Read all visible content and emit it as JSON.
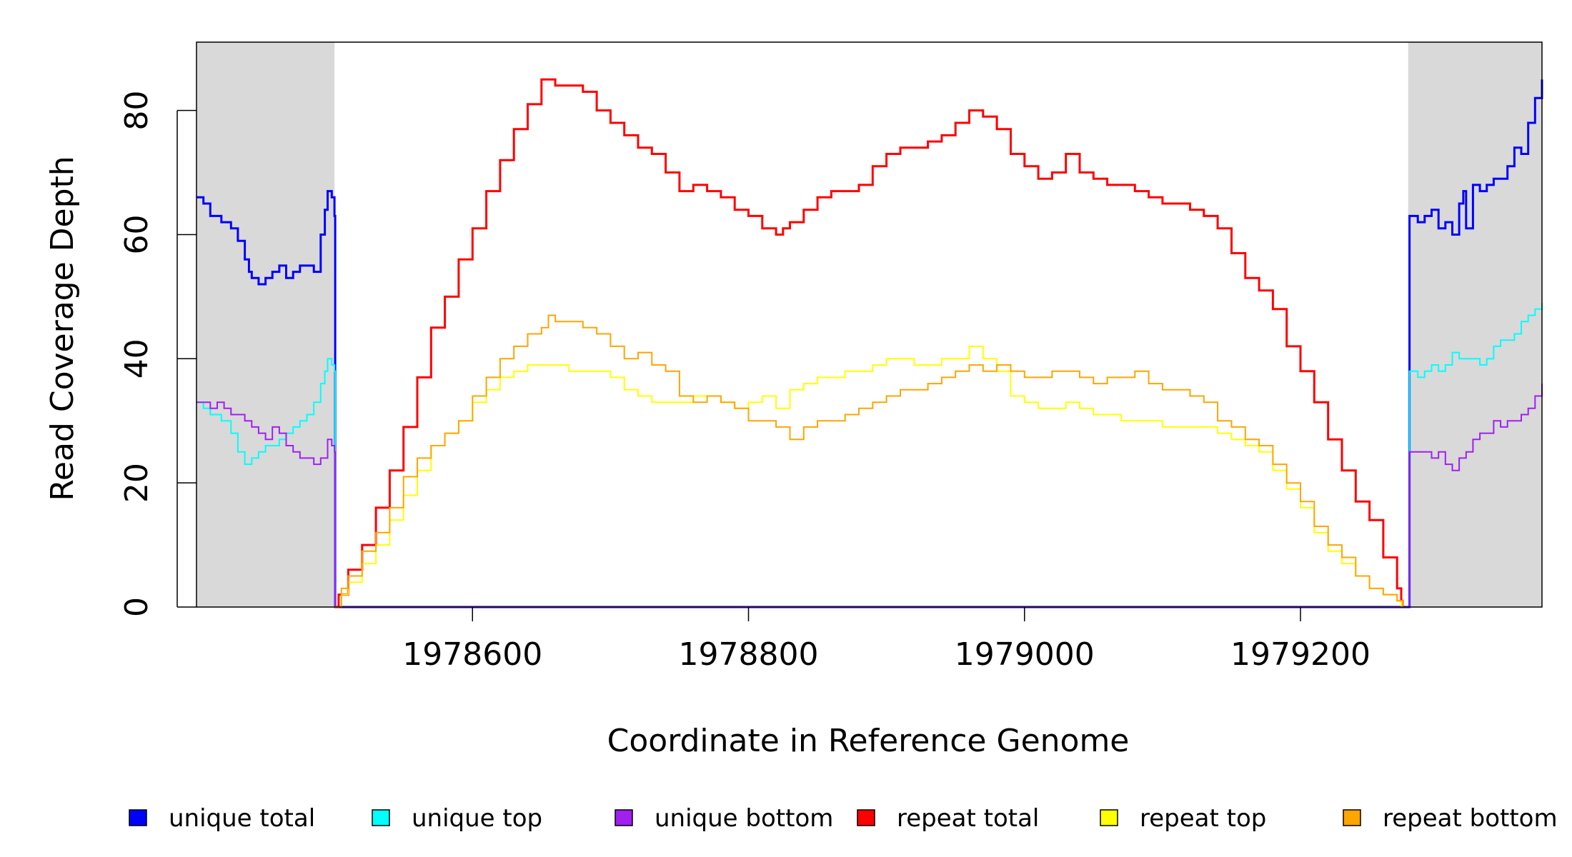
{
  "chart_data": {
    "type": "line",
    "title": "",
    "xlabel": "Coordinate in Reference Genome",
    "ylabel": "Read Coverage Depth",
    "xlim": [
      1978400,
      1979375
    ],
    "ylim": [
      0,
      91
    ],
    "xticks": [
      1978600,
      1978800,
      1979000,
      1979200
    ],
    "yticks": [
      0,
      20,
      40,
      60,
      80
    ],
    "shaded_regions": [
      {
        "from": 1978400,
        "to": 1978500,
        "color": "#d9d9d9"
      },
      {
        "from": 1979278,
        "to": 1979375,
        "color": "#d9d9d9"
      }
    ],
    "series": [
      {
        "name": "unique total",
        "color": "#0000ff",
        "width": 3,
        "x": [
          1978400,
          1978405,
          1978410,
          1978418,
          1978425,
          1978430,
          1978435,
          1978438,
          1978440,
          1978445,
          1978450,
          1978455,
          1978460,
          1978465,
          1978470,
          1978475,
          1978480,
          1978485,
          1978490,
          1978493,
          1978495,
          1978498,
          1978500,
          1978500.5,
          1979278,
          1979279,
          1979285,
          1979290,
          1979295,
          1979300,
          1979305,
          1979310,
          1979315,
          1979318,
          1979320,
          1979325,
          1979330,
          1979335,
          1979340,
          1979345,
          1979350,
          1979355,
          1979360,
          1979365,
          1979370,
          1979375
        ],
        "y": [
          66,
          65,
          63,
          62,
          61,
          59,
          56,
          54,
          53,
          52,
          53,
          54,
          55,
          53,
          54,
          55,
          55,
          54,
          60,
          64,
          67,
          66,
          63,
          0,
          0,
          63,
          62,
          63,
          64,
          61,
          62,
          60,
          65,
          67,
          61,
          68,
          67,
          68,
          69,
          69,
          71,
          74,
          73,
          78,
          82,
          85
        ]
      },
      {
        "name": "unique top",
        "color": "#00ffff",
        "width": 2,
        "x": [
          1978400,
          1978405,
          1978410,
          1978418,
          1978425,
          1978430,
          1978435,
          1978440,
          1978445,
          1978450,
          1978455,
          1978460,
          1978465,
          1978470,
          1978475,
          1978480,
          1978485,
          1978490,
          1978493,
          1978495,
          1978498,
          1978500,
          1978500.5,
          1979278,
          1979279,
          1979285,
          1979290,
          1979295,
          1979300,
          1979305,
          1979310,
          1979315,
          1979320,
          1979325,
          1979330,
          1979335,
          1979340,
          1979345,
          1979350,
          1979355,
          1979360,
          1979365,
          1979370,
          1979375
        ],
        "y": [
          33,
          32,
          31,
          30,
          28,
          25,
          23,
          24,
          25,
          26,
          26,
          27,
          28,
          29,
          30,
          31,
          33,
          36,
          38,
          40,
          39,
          38,
          0,
          0,
          38,
          37,
          38,
          39,
          38,
          39,
          41,
          40,
          40,
          40,
          39,
          40,
          42,
          43,
          43,
          44,
          46,
          47,
          48,
          49
        ]
      },
      {
        "name": "unique bottom",
        "color": "#a020f0",
        "width": 2,
        "x": [
          1978400,
          1978405,
          1978410,
          1978415,
          1978420,
          1978425,
          1978430,
          1978435,
          1978440,
          1978445,
          1978450,
          1978455,
          1978460,
          1978465,
          1978470,
          1978475,
          1978480,
          1978485,
          1978490,
          1978495,
          1978498,
          1978500,
          1978500.5,
          1979278,
          1979279,
          1979285,
          1979290,
          1979295,
          1979300,
          1979305,
          1979310,
          1979315,
          1979320,
          1979325,
          1979330,
          1979335,
          1979340,
          1979345,
          1979350,
          1979355,
          1979360,
          1979365,
          1979370,
          1979375
        ],
        "y": [
          33,
          33,
          32,
          33,
          32,
          31,
          31,
          30,
          29,
          28,
          27,
          29,
          28,
          26,
          25,
          24,
          24,
          23,
          24,
          27,
          26,
          25,
          0,
          0,
          25,
          25,
          25,
          24,
          25,
          23,
          22,
          24,
          25,
          27,
          28,
          28,
          30,
          29,
          30,
          30,
          31,
          32,
          34,
          36
        ]
      },
      {
        "name": "repeat total",
        "color": "#ff0000",
        "width": 3,
        "x": [
          1978500,
          1978503,
          1978510,
          1978520,
          1978530,
          1978540,
          1978550,
          1978560,
          1978570,
          1978580,
          1978590,
          1978600,
          1978610,
          1978620,
          1978630,
          1978640,
          1978650,
          1978655,
          1978660,
          1978670,
          1978680,
          1978690,
          1978700,
          1978710,
          1978720,
          1978730,
          1978740,
          1978750,
          1978760,
          1978770,
          1978780,
          1978790,
          1978800,
          1978810,
          1978820,
          1978825,
          1978830,
          1978840,
          1978850,
          1978860,
          1978870,
          1978880,
          1978890,
          1978900,
          1978910,
          1978920,
          1978930,
          1978940,
          1978950,
          1978960,
          1978970,
          1978980,
          1978990,
          1979000,
          1979010,
          1979020,
          1979030,
          1979040,
          1979050,
          1979060,
          1979070,
          1979080,
          1979090,
          1979100,
          1979110,
          1979120,
          1979130,
          1979140,
          1979150,
          1979160,
          1979170,
          1979180,
          1979190,
          1979200,
          1979210,
          1979220,
          1979230,
          1979240,
          1979250,
          1979260,
          1979270,
          1979273,
          1979274
        ],
        "y": [
          0,
          2,
          6,
          10,
          16,
          22,
          29,
          37,
          45,
          50,
          56,
          61,
          67,
          72,
          77,
          81,
          85,
          85,
          84,
          84,
          83,
          80,
          78,
          76,
          74,
          73,
          70,
          67,
          68,
          67,
          66,
          64,
          63,
          61,
          60,
          61,
          62,
          64,
          66,
          67,
          67,
          68,
          71,
          73,
          74,
          74,
          75,
          76,
          78,
          80,
          79,
          77,
          73,
          71,
          69,
          70,
          73,
          70,
          69,
          68,
          68,
          67,
          66,
          65,
          65,
          64,
          63,
          61,
          57,
          53,
          51,
          48,
          42,
          38,
          33,
          27,
          22,
          17,
          14,
          8,
          3,
          1,
          0
        ]
      },
      {
        "name": "repeat top",
        "color": "#ffff00",
        "width": 2,
        "x": [
          1978500,
          1978505,
          1978510,
          1978520,
          1978530,
          1978540,
          1978550,
          1978560,
          1978570,
          1978580,
          1978590,
          1978600,
          1978610,
          1978620,
          1978630,
          1978640,
          1978650,
          1978660,
          1978670,
          1978680,
          1978690,
          1978700,
          1978710,
          1978720,
          1978730,
          1978740,
          1978750,
          1978760,
          1978770,
          1978780,
          1978790,
          1978800,
          1978810,
          1978820,
          1978830,
          1978840,
          1978850,
          1978860,
          1978870,
          1978880,
          1978890,
          1978900,
          1978910,
          1978920,
          1978930,
          1978940,
          1978950,
          1978960,
          1978970,
          1978980,
          1978990,
          1979000,
          1979010,
          1979020,
          1979030,
          1979040,
          1979050,
          1979060,
          1979070,
          1979080,
          1979090,
          1979100,
          1979110,
          1979120,
          1979130,
          1979140,
          1979150,
          1979160,
          1979170,
          1979180,
          1979190,
          1979200,
          1979210,
          1979220,
          1979230,
          1979240,
          1979250,
          1979260,
          1979270,
          1979272,
          1979273
        ],
        "y": [
          0,
          2,
          4,
          7,
          10,
          14,
          18,
          22,
          26,
          28,
          30,
          33,
          35,
          37,
          38,
          39,
          39,
          39,
          38,
          38,
          38,
          37,
          35,
          34,
          33,
          33,
          33,
          34,
          34,
          33,
          32,
          33,
          34,
          32,
          35,
          36,
          37,
          37,
          38,
          38,
          39,
          40,
          40,
          39,
          39,
          40,
          40,
          42,
          40,
          38,
          34,
          33,
          32,
          32,
          33,
          32,
          31,
          31,
          30,
          30,
          30,
          29,
          29,
          29,
          29,
          28,
          27,
          26,
          25,
          22,
          19,
          16,
          12,
          9,
          7,
          5,
          3,
          2,
          1,
          1,
          0
        ]
      },
      {
        "name": "repeat bottom",
        "color": "#ffa500",
        "width": 2,
        "x": [
          1978500,
          1978505,
          1978510,
          1978520,
          1978530,
          1978540,
          1978550,
          1978560,
          1978570,
          1978580,
          1978590,
          1978600,
          1978610,
          1978620,
          1978630,
          1978640,
          1978650,
          1978655,
          1978660,
          1978670,
          1978680,
          1978690,
          1978700,
          1978710,
          1978720,
          1978730,
          1978740,
          1978750,
          1978760,
          1978770,
          1978780,
          1978790,
          1978800,
          1978810,
          1978820,
          1978830,
          1978840,
          1978850,
          1978860,
          1978870,
          1978880,
          1978890,
          1978900,
          1978910,
          1978920,
          1978930,
          1978940,
          1978950,
          1978960,
          1978970,
          1978980,
          1978990,
          1979000,
          1979010,
          1979020,
          1979030,
          1979040,
          1979050,
          1979060,
          1979070,
          1979080,
          1979090,
          1979100,
          1979110,
          1979120,
          1979130,
          1979140,
          1979150,
          1979160,
          1979170,
          1979180,
          1979190,
          1979200,
          1979210,
          1979220,
          1979230,
          1979240,
          1979250,
          1979260,
          1979270,
          1979273,
          1979274
        ],
        "y": [
          0,
          3,
          5,
          9,
          12,
          16,
          21,
          24,
          26,
          28,
          30,
          34,
          37,
          40,
          42,
          44,
          45,
          47,
          46,
          46,
          45,
          44,
          42,
          40,
          41,
          39,
          38,
          34,
          33,
          34,
          33,
          32,
          30,
          30,
          29,
          27,
          29,
          30,
          30,
          31,
          32,
          33,
          34,
          35,
          35,
          36,
          37,
          38,
          39,
          38,
          39,
          38,
          37,
          37,
          38,
          38,
          37,
          36,
          37,
          37,
          38,
          36,
          35,
          35,
          34,
          33,
          30,
          29,
          27,
          26,
          23,
          20,
          17,
          13,
          10,
          8,
          5,
          3,
          2,
          1,
          1,
          0
        ]
      }
    ],
    "legend": {
      "placement": "bottom"
    }
  }
}
